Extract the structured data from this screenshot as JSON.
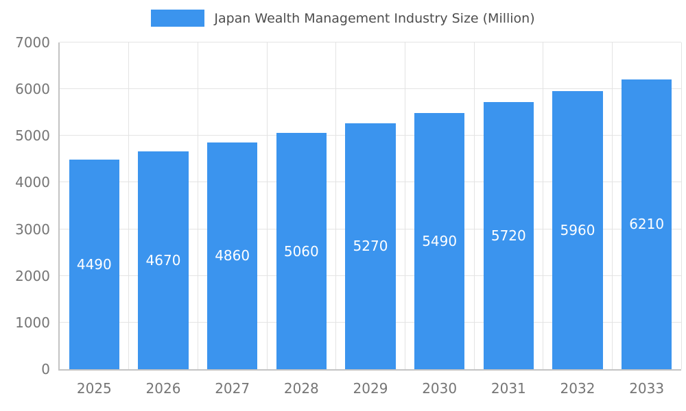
{
  "chart_data": {
    "type": "bar",
    "title": "Japan Wealth Management Industry Size (Million)",
    "categories": [
      "2025",
      "2026",
      "2027",
      "2028",
      "2029",
      "2030",
      "2031",
      "2032",
      "2033"
    ],
    "values": [
      4490,
      4670,
      4860,
      5060,
      5270,
      5490,
      5720,
      5960,
      6210
    ],
    "xlabel": "",
    "ylabel": "",
    "ylim": [
      0,
      7000
    ],
    "ytick_step": 1000,
    "grid": true,
    "legend_position": "top",
    "bar_color": "#3b94ee",
    "value_label_color": "#ffffff",
    "axis_text_color": "#757575",
    "title_color": "#4d4d4d"
  }
}
